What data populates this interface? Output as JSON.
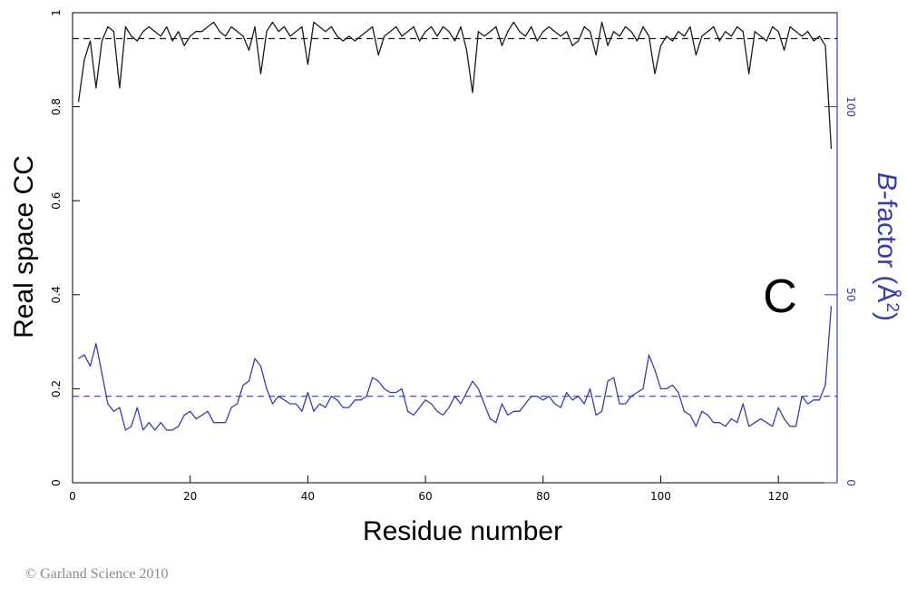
{
  "chart_data": {
    "type": "line",
    "xlabel": "Residue number",
    "ylabel_left": "Real space CC",
    "ylabel_right_italic": "B",
    "ylabel_right_rest": "-factor (Å",
    "ylabel_right_sup": "2",
    "ylabel_right_close": ")",
    "panel_label": "C",
    "x_range": [
      0,
      130
    ],
    "y_left_range": [
      0,
      1
    ],
    "y_right_range": [
      0,
      125
    ],
    "x_ticks": [
      0,
      20,
      40,
      60,
      80,
      100,
      120
    ],
    "y_left_ticks": [
      0,
      0.2,
      0.4,
      0.6,
      0.8,
      1
    ],
    "y_right_ticks": [
      0,
      50,
      100
    ],
    "grid": false,
    "colors": {
      "cc": "#1a1a1a",
      "bfactor": "#3b3f9f"
    },
    "series": [
      {
        "axis": "left",
        "x": [
          1,
          2,
          3,
          4,
          5,
          6,
          7,
          8,
          9,
          10,
          11,
          12,
          13,
          14,
          15,
          16,
          17,
          18,
          19,
          20,
          21,
          22,
          23,
          24,
          25,
          26,
          27,
          28,
          29,
          30,
          31,
          32,
          33,
          34,
          35,
          36,
          37,
          38,
          39,
          40,
          41,
          42,
          43,
          44,
          45,
          46,
          47,
          48,
          49,
          50,
          51,
          52,
          53,
          54,
          55,
          56,
          57,
          58,
          59,
          60,
          61,
          62,
          63,
          64,
          65,
          66,
          67,
          68,
          69,
          70,
          71,
          72,
          73,
          74,
          75,
          76,
          77,
          78,
          79,
          80,
          81,
          82,
          83,
          84,
          85,
          86,
          87,
          88,
          89,
          90,
          91,
          92,
          93,
          94,
          95,
          96,
          97,
          98,
          99,
          100,
          101,
          102,
          103,
          104,
          105,
          106,
          107,
          108,
          109,
          110,
          111,
          112,
          113,
          114,
          115,
          116,
          117,
          118,
          119,
          120,
          121,
          122,
          123,
          124,
          125,
          126,
          127,
          128,
          129
        ],
        "y": [
          0.81,
          0.9,
          0.94,
          0.84,
          0.94,
          0.97,
          0.96,
          0.84,
          0.97,
          0.95,
          0.94,
          0.96,
          0.97,
          0.96,
          0.95,
          0.97,
          0.94,
          0.96,
          0.93,
          0.95,
          0.96,
          0.96,
          0.97,
          0.98,
          0.96,
          0.95,
          0.97,
          0.96,
          0.95,
          0.92,
          0.97,
          0.87,
          0.96,
          0.98,
          0.96,
          0.97,
          0.95,
          0.96,
          0.97,
          0.89,
          0.98,
          0.97,
          0.96,
          0.97,
          0.95,
          0.94,
          0.95,
          0.94,
          0.95,
          0.96,
          0.97,
          0.91,
          0.95,
          0.96,
          0.97,
          0.95,
          0.96,
          0.97,
          0.94,
          0.96,
          0.97,
          0.95,
          0.97,
          0.96,
          0.94,
          0.97,
          0.92,
          0.83,
          0.96,
          0.95,
          0.96,
          0.97,
          0.93,
          0.96,
          0.98,
          0.96,
          0.95,
          0.97,
          0.94,
          0.96,
          0.97,
          0.96,
          0.95,
          0.96,
          0.93,
          0.94,
          0.97,
          0.96,
          0.91,
          0.98,
          0.93,
          0.96,
          0.95,
          0.97,
          0.96,
          0.94,
          0.97,
          0.95,
          0.87,
          0.93,
          0.95,
          0.94,
          0.96,
          0.95,
          0.97,
          0.91,
          0.95,
          0.96,
          0.97,
          0.94,
          0.96,
          0.95,
          0.97,
          0.96,
          0.87,
          0.96,
          0.95,
          0.94,
          0.97,
          0.96,
          0.92,
          0.97,
          0.96,
          0.95,
          0.96,
          0.94,
          0.95,
          0.93,
          0.71
        ]
      },
      {
        "axis": "right",
        "x": [
          1,
          2,
          3,
          4,
          5,
          6,
          7,
          8,
          9,
          10,
          11,
          12,
          13,
          14,
          15,
          16,
          17,
          18,
          19,
          20,
          21,
          22,
          23,
          24,
          25,
          26,
          27,
          28,
          29,
          30,
          31,
          32,
          33,
          34,
          35,
          36,
          37,
          38,
          39,
          40,
          41,
          42,
          43,
          44,
          45,
          46,
          47,
          48,
          49,
          50,
          51,
          52,
          53,
          54,
          55,
          56,
          57,
          58,
          59,
          60,
          61,
          62,
          63,
          64,
          65,
          66,
          67,
          68,
          69,
          70,
          71,
          72,
          73,
          74,
          75,
          76,
          77,
          78,
          79,
          80,
          81,
          82,
          83,
          84,
          85,
          86,
          87,
          88,
          89,
          90,
          91,
          92,
          93,
          94,
          95,
          96,
          97,
          98,
          99,
          100,
          101,
          102,
          103,
          104,
          105,
          106,
          107,
          108,
          109,
          110,
          111,
          112,
          113,
          114,
          115,
          116,
          117,
          118,
          119,
          120,
          121,
          122,
          123,
          124,
          125,
          126,
          127,
          128,
          129
        ],
        "y": [
          33,
          34,
          31,
          37,
          29,
          21,
          19,
          20,
          14,
          15,
          20,
          14,
          16,
          14,
          16,
          14,
          14,
          15,
          18,
          19,
          17,
          18,
          19,
          16,
          16,
          16,
          20,
          21,
          26,
          27,
          33,
          31,
          25,
          21,
          23,
          22,
          21,
          21,
          19,
          24,
          19,
          21,
          20,
          23,
          22,
          20,
          20,
          22,
          22,
          23,
          28,
          27,
          25,
          24,
          24,
          25,
          19,
          18,
          20,
          22,
          21,
          19,
          18,
          20,
          23,
          21,
          24,
          27,
          25,
          21,
          17,
          16,
          21,
          18,
          19,
          19,
          21,
          23,
          23,
          22,
          23,
          21,
          20,
          24,
          22,
          23,
          21,
          25,
          18,
          19,
          27,
          28,
          21,
          21,
          23,
          24,
          25,
          34,
          30,
          25,
          25,
          26,
          24,
          19,
          18,
          15,
          19,
          18,
          16,
          16,
          15,
          17,
          16,
          21,
          15,
          16,
          17,
          16,
          15,
          20,
          17,
          15,
          15,
          23,
          21,
          22,
          22,
          26,
          47
        ]
      }
    ],
    "reference_lines": [
      {
        "axis": "left",
        "y": 0.945
      },
      {
        "axis": "right",
        "y": 23
      }
    ]
  },
  "footer": {
    "copyright": "© Garland Science 2010"
  }
}
